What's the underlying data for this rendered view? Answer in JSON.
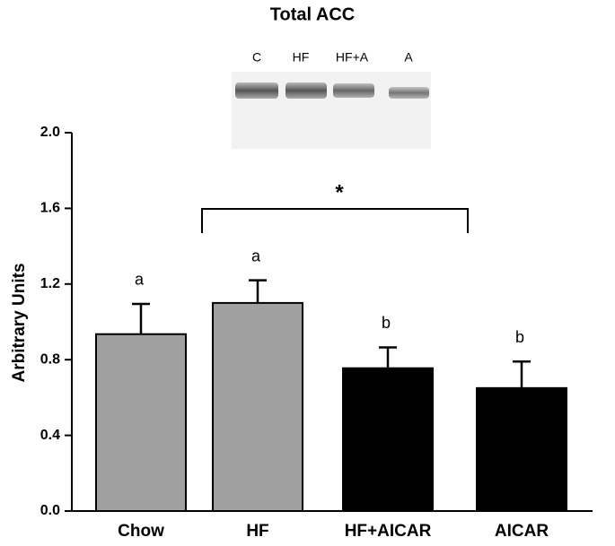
{
  "chart_data": {
    "type": "bar",
    "title": "Total ACC",
    "y_label": "Arbitrary  Units",
    "blot_labels": [
      "C",
      "HF",
      "HF+A",
      "A"
    ],
    "categories": [
      "Chow",
      "HF",
      "HF+AICAR",
      "AICAR"
    ],
    "values": [
      0.935,
      1.1,
      0.755,
      0.65
    ],
    "errors": [
      0.16,
      0.12,
      0.11,
      0.14
    ],
    "colors": [
      "#a0a0a0",
      "#a0a0a0",
      "#000000",
      "#000000"
    ],
    "letters": [
      "a",
      "a",
      "b",
      "b"
    ],
    "significance": "*",
    "ylim": [
      0,
      2
    ],
    "yticks": [
      {
        "value": 0,
        "label": "0.0"
      },
      0.4,
      0.8,
      1.2,
      1.6,
      {
        "value": 2,
        "label": "2.0"
      }
    ]
  }
}
